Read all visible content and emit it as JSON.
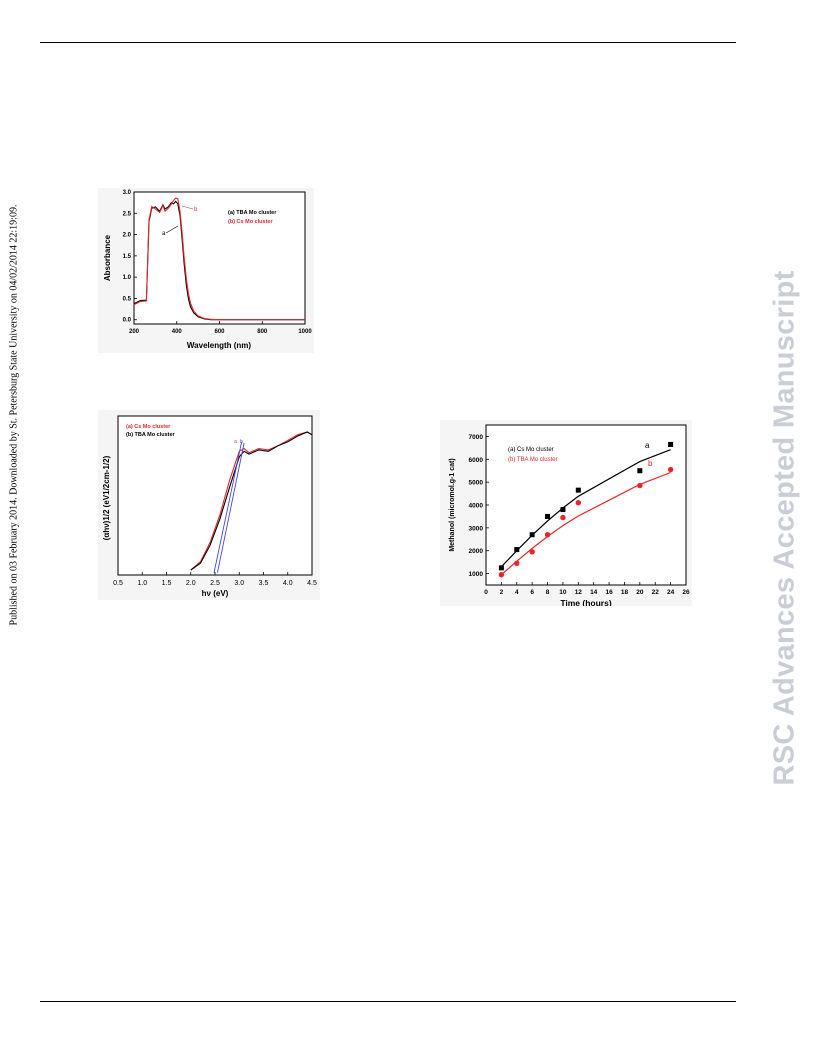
{
  "sidebar_left": "Published on 03 February 2014. Downloaded by St. Petersburg State University on 04/02/2014 22:19:09.",
  "sidebar_right": "RSC Advances Accepted Manuscript",
  "chart_data": [
    {
      "type": "line",
      "xlabel": "Wavelength (nm)",
      "ylabel": "Absorbance",
      "xlim": [
        200,
        1000
      ],
      "ylim": [
        -0.1,
        3.0
      ],
      "xticks": [
        "200",
        "400",
        "600",
        "800",
        "1000"
      ],
      "yticks": [
        "0.0",
        "0.5",
        "1.0",
        "1.5",
        "2.0",
        "2.5",
        "3.0"
      ],
      "legend": [
        "(a) TBA Mo cluster",
        "(b) Cs  Mo cluster"
      ],
      "annotations": [
        "a",
        "b"
      ],
      "colors": [
        "#000000",
        "#e8262a"
      ],
      "series": [
        {
          "name": "(a) TBA Mo cluster",
          "x": [
            200,
            230,
            258,
            270,
            283,
            300,
            320,
            335,
            345,
            360,
            375,
            385,
            395,
            405,
            415,
            425,
            435,
            445,
            455,
            465,
            480,
            500,
            530,
            560,
            600,
            700,
            800,
            1000
          ],
          "y": [
            0.38,
            0.45,
            0.46,
            2.3,
            2.62,
            2.65,
            2.55,
            2.7,
            2.6,
            2.65,
            2.75,
            2.72,
            2.78,
            2.72,
            2.45,
            1.9,
            1.3,
            0.8,
            0.48,
            0.3,
            0.16,
            0.07,
            0.02,
            0.0,
            0.0,
            0.0,
            0.0,
            0.0
          ]
        },
        {
          "name": "(b) Cs  Mo cluster",
          "x": [
            200,
            230,
            258,
            270,
            283,
            300,
            320,
            335,
            345,
            360,
            375,
            385,
            395,
            405,
            415,
            425,
            435,
            445,
            455,
            465,
            480,
            500,
            530,
            560,
            600,
            700,
            800,
            1000
          ],
          "y": [
            0.35,
            0.43,
            0.44,
            2.35,
            2.66,
            2.6,
            2.52,
            2.68,
            2.55,
            2.62,
            2.72,
            2.8,
            2.86,
            2.84,
            2.55,
            2.05,
            1.45,
            0.95,
            0.6,
            0.38,
            0.2,
            0.09,
            0.03,
            0.01,
            0.0,
            0.0,
            0.0,
            0.0
          ]
        }
      ]
    },
    {
      "type": "line",
      "xlabel": "hν (eV)",
      "ylabel": "(αhν)1/2 (eV1/2cm-1/2)",
      "xlim": [
        0.5,
        4.5
      ],
      "ylim": [
        0,
        1
      ],
      "xticks": [
        "0.5",
        "1.0",
        "1.5",
        "2.0",
        "2.5",
        "3.0",
        "3.5",
        "4.0",
        "4.5"
      ],
      "legend": [
        "(a) Cs Mo cluster",
        "(b) TBA Mo cluster"
      ],
      "annotations": [
        "a",
        "b"
      ],
      "colors": [
        "#e8262a",
        "#000000",
        "#4545e0"
      ],
      "series": [
        {
          "name": "(a) Cs Mo cluster",
          "x": [
            2.0,
            2.2,
            2.4,
            2.6,
            2.8,
            3.0,
            3.1,
            3.2,
            3.4,
            3.6,
            3.8,
            4.0,
            4.2,
            4.4,
            4.5
          ],
          "y": [
            0.0,
            0.06,
            0.2,
            0.4,
            0.65,
            0.86,
            0.88,
            0.85,
            0.88,
            0.87,
            0.9,
            0.94,
            0.98,
            1.0,
            0.98
          ]
        },
        {
          "name": "(b) TBA Mo cluster",
          "x": [
            2.0,
            2.2,
            2.4,
            2.6,
            2.8,
            3.0,
            3.1,
            3.2,
            3.4,
            3.6,
            3.8,
            4.0,
            4.2,
            4.4,
            4.5
          ],
          "y": [
            0.0,
            0.05,
            0.18,
            0.37,
            0.6,
            0.82,
            0.86,
            0.84,
            0.87,
            0.86,
            0.9,
            0.93,
            0.97,
            1.0,
            0.98
          ]
        },
        {
          "x": [
            2.48,
            3.05
          ],
          "y": [
            -0.02,
            0.93
          ]
        },
        {
          "x": [
            2.55,
            3.1
          ],
          "y": [
            -0.02,
            0.92
          ]
        }
      ]
    },
    {
      "type": "scatter",
      "xlabel": "Time (hours)",
      "ylabel": "Methanol (micromol.g-1 cat)",
      "xlim": [
        0,
        26
      ],
      "ylim": [
        500,
        7500
      ],
      "xticks": [
        "0",
        "2",
        "4",
        "6",
        "8",
        "10",
        "12",
        "14",
        "16",
        "18",
        "20",
        "22",
        "24",
        "26"
      ],
      "yticks": [
        "1000",
        "2000",
        "3000",
        "4000",
        "5000",
        "6000",
        "7000"
      ],
      "legend": [
        "(a) Cs Mo cluster",
        "(b) TBA Mo cluster"
      ],
      "annotations": [
        "a",
        "b"
      ],
      "colors": [
        "#000000",
        "#e8262a"
      ],
      "series": [
        {
          "name": "(a) Cs Mo cluster",
          "x": [
            2,
            4,
            6,
            8,
            10,
            12,
            20,
            24
          ],
          "y": [
            1250,
            2050,
            2700,
            3500,
            3800,
            4650,
            5500,
            6650
          ],
          "fit_y": [
            1300,
            2000,
            2680,
            3300,
            3870,
            4380,
            5900,
            6420
          ]
        },
        {
          "name": "(b) TBA Mo cluster",
          "x": [
            2,
            4,
            6,
            8,
            10,
            12,
            20,
            24
          ],
          "y": [
            950,
            1450,
            1950,
            2700,
            3450,
            4100,
            4850,
            5550
          ],
          "fit_y": [
            950,
            1540,
            2100,
            2620,
            3100,
            3520,
            4900,
            5420
          ]
        }
      ]
    }
  ]
}
